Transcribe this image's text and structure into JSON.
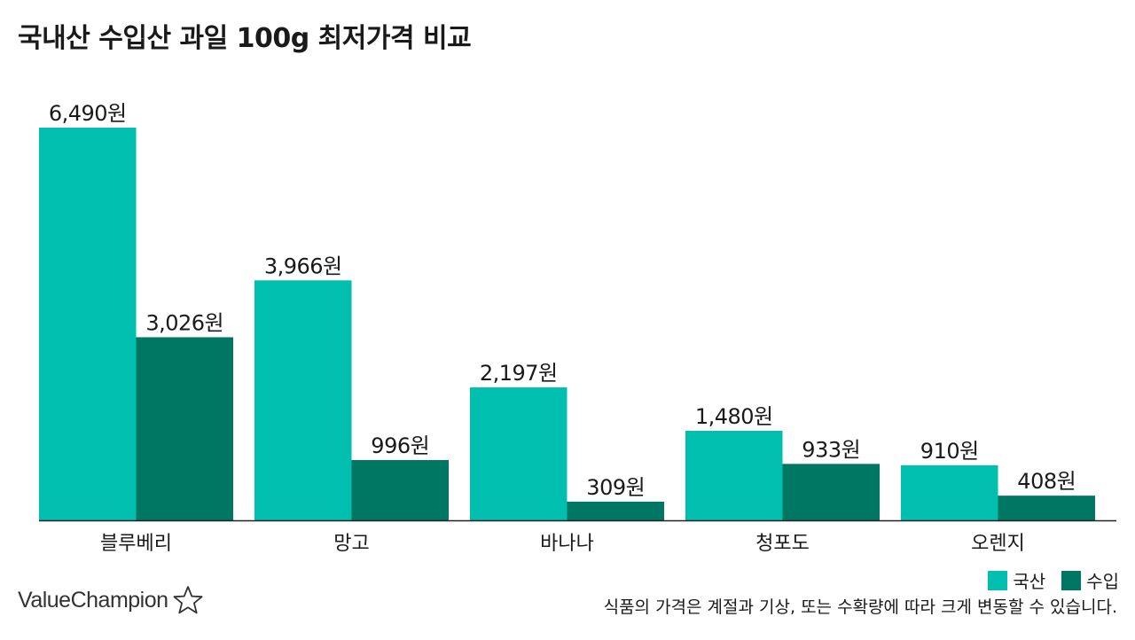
{
  "chart_data": {
    "type": "bar",
    "title": "국내산 수입산 과일 100g 최저가격 비교",
    "categories": [
      "블루베리",
      "망고",
      "바나나",
      "청포도",
      "오렌지"
    ],
    "series": [
      {
        "name": "국산",
        "values": [
          6490,
          3966,
          2197,
          1480,
          910
        ],
        "labels": [
          "6,490원",
          "3,966원",
          "2,197원",
          "1,480원",
          "910원"
        ]
      },
      {
        "name": "수입",
        "values": [
          3026,
          996,
          309,
          933,
          408
        ],
        "labels": [
          "3,026원",
          "996원",
          "309원",
          "933원",
          "408원"
        ]
      }
    ],
    "ylim": [
      0,
      6490
    ],
    "xlabel": "",
    "ylabel": "",
    "grid": false,
    "legend_position": "bottom-right"
  },
  "colors": {
    "domestic": "#00bfae",
    "imported": "#007763",
    "axis": "#222222",
    "text": "#1a1a1a"
  },
  "legend": {
    "domestic": "국산",
    "imported": "수입"
  },
  "footnote": "식품의 가격은 계절과 기상, 또는 수확량에 따라 크게 변동할 수 있습니다.",
  "brand": {
    "name": "ValueChampion",
    "icon": "star-outline-icon"
  }
}
